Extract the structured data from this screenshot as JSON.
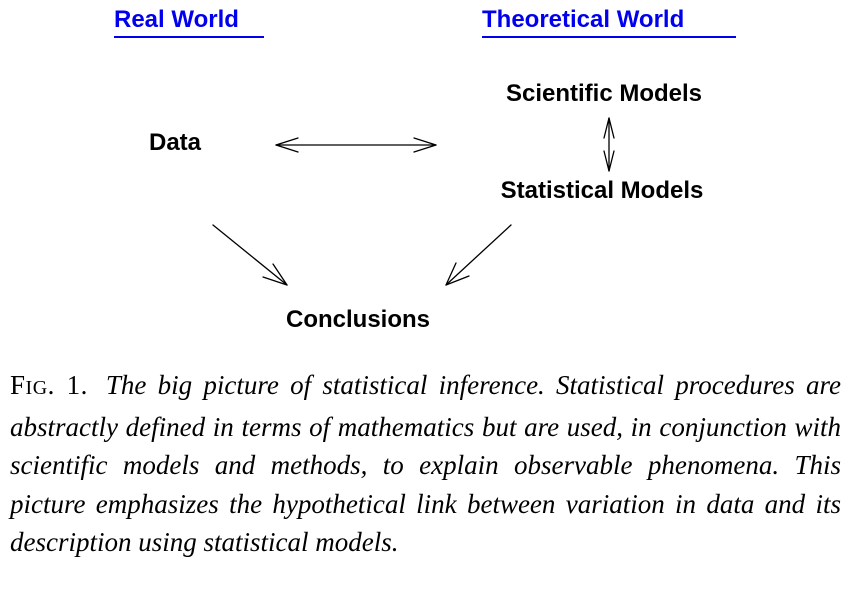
{
  "headings": {
    "real": "Real World",
    "theoretical": "Theoretical World",
    "color": "#0000ee"
  },
  "nodes": {
    "data": "Data",
    "scientific_models": "Scientific Models",
    "statistical_models": "Statistical Models",
    "conclusions": "Conclusions"
  },
  "edges": [
    {
      "from": "data",
      "to": "statistical_models",
      "style": "double-headed"
    },
    {
      "from": "scientific_models",
      "to": "statistical_models",
      "style": "double-headed"
    },
    {
      "from": "data",
      "to": "conclusions",
      "style": "single-headed"
    },
    {
      "from": "statistical_models",
      "to": "conclusions",
      "style": "single-headed"
    }
  ],
  "caption": {
    "label_first": "F",
    "label_rest": "IG",
    "label_number": ". 1.",
    "text": "The big picture of statistical inference. Statistical procedures are abstractly defined in terms of mathematics but are used, in conjunction with scientific models and methods, to explain observable phenomena. This picture emphasizes the hypothetical link between variation in data and its description using statistical models."
  }
}
